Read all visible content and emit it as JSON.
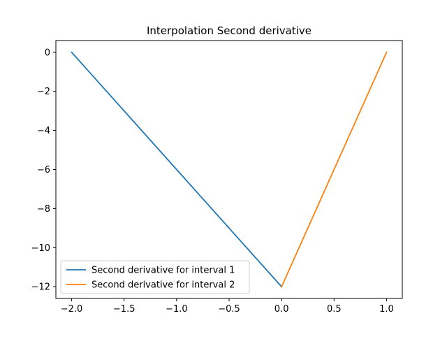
{
  "chart_data": {
    "type": "line",
    "title": "Interpolation Second derivative",
    "xlabel": "",
    "ylabel": "",
    "xlim": [
      -2.15,
      1.15
    ],
    "ylim": [
      -12.6,
      0.6
    ],
    "xticks": [
      -2.0,
      -1.5,
      -1.0,
      -0.5,
      0.0,
      0.5,
      1.0
    ],
    "xtick_labels": [
      "−2.0",
      "−1.5",
      "−1.0",
      "−0.5",
      "0.0",
      "0.5",
      "1.0"
    ],
    "yticks": [
      0,
      -2,
      -4,
      -6,
      -8,
      -10,
      -12
    ],
    "ytick_labels": [
      "0",
      "−2",
      "−4",
      "−6",
      "−8",
      "−10",
      "−12"
    ],
    "grid": false,
    "legend_position": "lower-left",
    "series": [
      {
        "name": "Second derivative for interval 1",
        "color": "#1f77b4",
        "x": [
          -2.0,
          0.0
        ],
        "y": [
          0,
          -12
        ]
      },
      {
        "name": "Second derivative for interval 2",
        "color": "#ff7f0e",
        "x": [
          0.0,
          1.0
        ],
        "y": [
          -12,
          0
        ]
      }
    ]
  }
}
